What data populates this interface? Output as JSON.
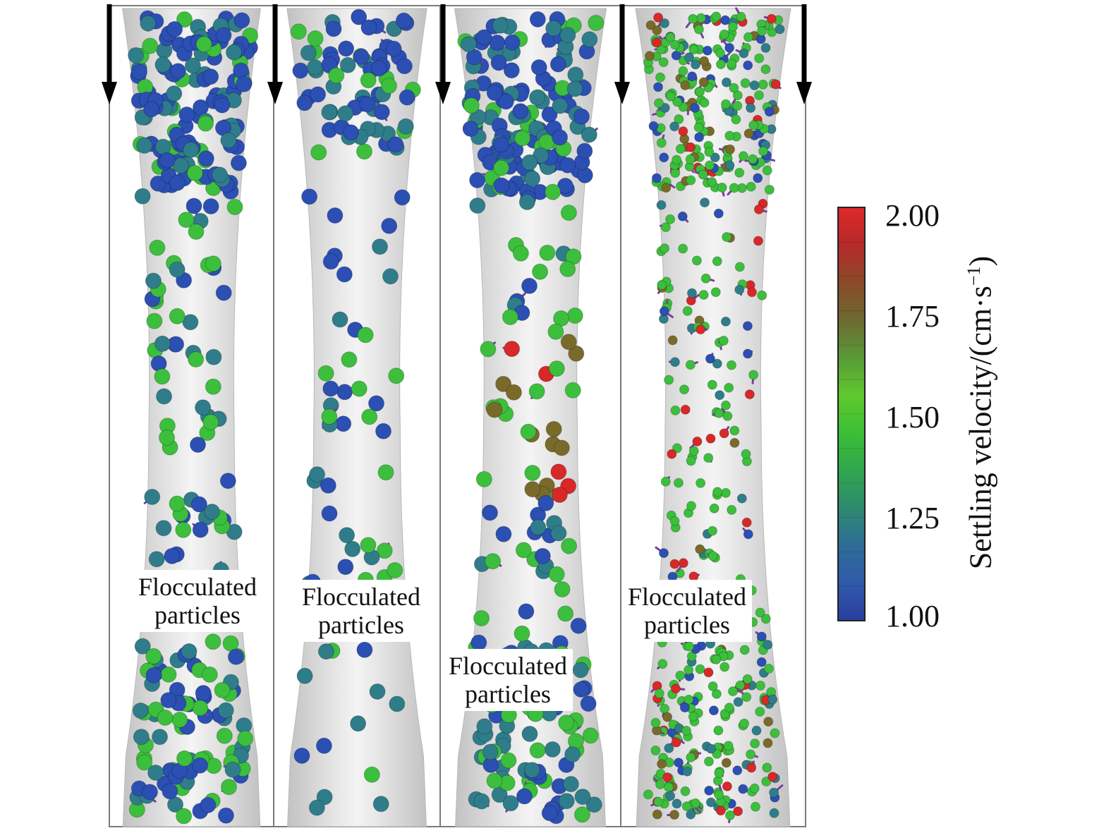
{
  "panels": [
    {
      "label_line1": "Flocculated",
      "label_line2": "particles"
    },
    {
      "label_line1": "Flocculated",
      "label_line2": "particles"
    },
    {
      "label_line1": "Flocculated",
      "label_line2": "particles"
    },
    {
      "label_line1": "Flocculated",
      "label_line2": "particles"
    }
  ],
  "colorbar": {
    "title_main": "Settling velocity/(cm·s",
    "title_exp": "−1",
    "title_close": ")",
    "ticks": [
      "2.00",
      "1.75",
      "1.50",
      "1.25",
      "1.00"
    ],
    "min": 1.0,
    "max": 2.0,
    "colors_low_to_high": [
      "#2a3d9e",
      "#2f5aa8",
      "#2e6d98",
      "#2f8a6e",
      "#2fa64e",
      "#3cbf35",
      "#5ec92e",
      "#5a9a38",
      "#6d6a30",
      "#8a4a28",
      "#b52a2a",
      "#e02828"
    ]
  },
  "colors": {
    "tube": "#d0d0d0",
    "tube_highlight": "#f4f4f4",
    "frame": "#7a7a7a",
    "arrow": "#000000",
    "particle_blue": "#2b4fb3",
    "particle_teal": "#2f7d8a",
    "particle_green": "#3cbf3c",
    "particle_olive": "#7a6a2a",
    "particle_red": "#d82828",
    "bond": "#7a3fa0"
  }
}
